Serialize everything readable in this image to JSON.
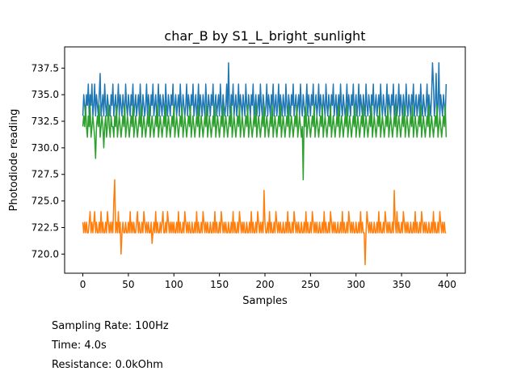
{
  "chart_data": {
    "type": "line",
    "title": "char_B by S1_L_bright_sunlight",
    "xlabel": "Samples",
    "ylabel": "Photodiode reading",
    "xlim": [
      -20,
      420
    ],
    "ylim": [
      718.2,
      739.5
    ],
    "xticks": [
      0,
      50,
      100,
      150,
      200,
      250,
      300,
      350,
      400
    ],
    "xtick_labels": [
      "0",
      "50",
      "100",
      "150",
      "200",
      "250",
      "300",
      "350",
      "400"
    ],
    "yticks": [
      720.0,
      722.5,
      725.0,
      727.5,
      730.0,
      732.5,
      735.0,
      737.5
    ],
    "ytick_labels": [
      "720.0",
      "722.5",
      "725.0",
      "727.5",
      "730.0",
      "732.5",
      "735.0",
      "737.5"
    ],
    "grid": false,
    "legend": "none",
    "n_samples": 400,
    "series": [
      {
        "color": "#1f77b4",
        "base": 734,
        "values": [
          733,
          735,
          734,
          733,
          735,
          734,
          736,
          733,
          735,
          734,
          736,
          733,
          734,
          736,
          733,
          735,
          734,
          733,
          735,
          737,
          733,
          734,
          735,
          733,
          736,
          734,
          733,
          735,
          734,
          734,
          733,
          735,
          734,
          736,
          733,
          734,
          735,
          733,
          734,
          736,
          733,
          735,
          734,
          733,
          735,
          734,
          733,
          736,
          734,
          733,
          735,
          734,
          733,
          735,
          734,
          736,
          733,
          734,
          735,
          733,
          734,
          735,
          733,
          736,
          734,
          733,
          735,
          734,
          733,
          734,
          736,
          733,
          735,
          734,
          733,
          735,
          734,
          736,
          733,
          734,
          735,
          733,
          734,
          736,
          733,
          735,
          734,
          733,
          735,
          734,
          733,
          736,
          734,
          733,
          735,
          734,
          733,
          735,
          734,
          736,
          733,
          734,
          735,
          733,
          734,
          735,
          733,
          736,
          734,
          733,
          735,
          734,
          733,
          734,
          736,
          733,
          735,
          734,
          733,
          735,
          734,
          736,
          733,
          734,
          735,
          733,
          734,
          736,
          733,
          735,
          734,
          733,
          735,
          734,
          733,
          736,
          734,
          733,
          735,
          734,
          733,
          735,
          734,
          736,
          733,
          734,
          735,
          733,
          734,
          735,
          733,
          736,
          734,
          733,
          735,
          734,
          733,
          734,
          736,
          733,
          738,
          734,
          733,
          735,
          734,
          736,
          733,
          734,
          735,
          733,
          734,
          736,
          733,
          735,
          734,
          733,
          735,
          734,
          733,
          736,
          734,
          733,
          735,
          734,
          733,
          735,
          734,
          736,
          733,
          734,
          735,
          733,
          734,
          735,
          733,
          736,
          734,
          733,
          735,
          734,
          733,
          734,
          736,
          733,
          735,
          734,
          733,
          735,
          734,
          736,
          733,
          734,
          735,
          733,
          734,
          736,
          733,
          735,
          734,
          733,
          735,
          734,
          733,
          736,
          734,
          733,
          735,
          734,
          733,
          735,
          734,
          736,
          733,
          734,
          735,
          733,
          734,
          735,
          733,
          736,
          734,
          733,
          735,
          734,
          733,
          734,
          736,
          733,
          735,
          734,
          733,
          735,
          734,
          736,
          733,
          734,
          735,
          733,
          734,
          736,
          733,
          735,
          734,
          733,
          735,
          734,
          733,
          736,
          734,
          733,
          735,
          734,
          733,
          735,
          734,
          736,
          733,
          734,
          735,
          733,
          734,
          735,
          733,
          736,
          734,
          733,
          735,
          734,
          733,
          734,
          736,
          733,
          735,
          734,
          733,
          735,
          734,
          736,
          733,
          734,
          735,
          733,
          734,
          736,
          733,
          735,
          734,
          733,
          735,
          734,
          733,
          736,
          734,
          733,
          735,
          734,
          733,
          735,
          734,
          736,
          733,
          734,
          735,
          733,
          734,
          735,
          733,
          736,
          734,
          733,
          735,
          734,
          733,
          734,
          736,
          733,
          735,
          734,
          733,
          735,
          734,
          736,
          733,
          734,
          735,
          733,
          734,
          736,
          733,
          735,
          734,
          733,
          735,
          734,
          733,
          736,
          734,
          733,
          735,
          734,
          733,
          735,
          734,
          736,
          733,
          734,
          735,
          733,
          734,
          735,
          733,
          736,
          734,
          733,
          735,
          734,
          733,
          734,
          736,
          733,
          735,
          734,
          733,
          735,
          738,
          736,
          733,
          734,
          737,
          733,
          734,
          738,
          733,
          735,
          734,
          733,
          735,
          734,
          733,
          736,
          734,
          733,
          735,
          734,
          733,
          735,
          734,
          736,
          733,
          734,
          735,
          733,
          734
        ]
      },
      {
        "color": "#ff7f0e",
        "base": 722.5,
        "values": [
          723,
          722,
          723,
          722,
          723,
          722,
          722,
          723,
          724,
          722,
          723,
          722,
          723,
          724,
          722,
          723,
          722,
          722,
          723,
          722,
          724,
          722,
          723,
          722,
          722,
          723,
          722,
          724,
          723,
          722,
          723,
          722,
          723,
          722,
          725,
          727,
          722,
          723,
          722,
          724,
          722,
          723,
          720,
          722,
          723,
          722,
          722,
          723,
          722,
          722,
          723,
          722,
          724,
          722,
          723,
          722,
          723,
          722,
          722,
          723,
          724,
          722,
          723,
          722,
          722,
          723,
          722,
          724,
          723,
          722,
          723,
          722,
          723,
          722,
          722,
          723,
          721,
          722,
          723,
          722,
          724,
          722,
          723,
          722,
          722,
          723,
          722,
          723,
          724,
          722,
          722,
          723,
          722,
          724,
          723,
          722,
          723,
          722,
          723,
          722,
          723,
          722,
          722,
          723,
          722,
          724,
          722,
          723,
          722,
          722,
          723,
          722,
          724,
          723,
          722,
          723,
          722,
          723,
          722,
          722,
          723,
          722,
          722,
          723,
          722,
          724,
          722,
          723,
          722,
          722,
          723,
          722,
          724,
          723,
          722,
          723,
          722,
          723,
          722,
          722,
          723,
          722,
          722,
          723,
          722,
          724,
          722,
          723,
          722,
          722,
          723,
          722,
          724,
          723,
          722,
          723,
          722,
          723,
          722,
          722,
          723,
          722,
          722,
          723,
          722,
          724,
          722,
          723,
          722,
          722,
          723,
          722,
          724,
          723,
          722,
          723,
          722,
          723,
          722,
          722,
          723,
          722,
          722,
          723,
          722,
          724,
          722,
          723,
          722,
          722,
          723,
          722,
          724,
          723,
          722,
          723,
          722,
          723,
          722,
          726,
          723,
          722,
          722,
          723,
          722,
          724,
          722,
          723,
          722,
          722,
          723,
          722,
          724,
          723,
          722,
          723,
          722,
          723,
          722,
          722,
          723,
          722,
          722,
          723,
          722,
          724,
          722,
          723,
          722,
          722,
          723,
          722,
          724,
          723,
          722,
          723,
          722,
          723,
          722,
          722,
          723,
          722,
          722,
          723,
          722,
          724,
          722,
          723,
          722,
          722,
          723,
          722,
          724,
          723,
          722,
          723,
          722,
          723,
          722,
          722,
          723,
          722,
          722,
          723,
          722,
          724,
          722,
          723,
          722,
          722,
          723,
          722,
          724,
          723,
          722,
          723,
          722,
          723,
          722,
          722,
          723,
          722,
          722,
          723,
          722,
          724,
          722,
          723,
          722,
          722,
          723,
          722,
          724,
          723,
          722,
          723,
          722,
          723,
          722,
          722,
          723,
          722,
          722,
          723,
          722,
          724,
          722,
          723,
          722,
          722,
          719,
          722,
          724,
          723,
          722,
          723,
          722,
          723,
          722,
          722,
          723,
          722,
          722,
          723,
          722,
          724,
          722,
          723,
          722,
          722,
          723,
          722,
          724,
          723,
          722,
          723,
          722,
          723,
          722,
          722,
          723,
          722,
          726,
          723,
          722,
          724,
          722,
          723,
          722,
          722,
          723,
          722,
          724,
          723,
          722,
          723,
          722,
          723,
          722,
          722,
          723,
          722,
          722,
          723,
          722,
          724,
          722,
          723,
          722,
          722,
          723,
          722,
          724,
          723,
          722,
          723,
          722,
          723,
          722,
          722,
          723,
          722,
          722,
          723,
          722,
          724,
          722,
          723,
          722,
          722,
          723,
          722,
          724,
          723,
          722,
          723,
          722,
          723,
          722,
          722,
          723,
          722,
          722,
          723,
          722,
          723
        ]
      },
      {
        "color": "#2ca02c",
        "base": 732,
        "values": [
          732,
          733,
          732,
          734,
          732,
          731,
          733,
          732,
          734,
          731,
          732,
          733,
          732,
          731,
          729,
          732,
          733,
          732,
          734,
          731,
          732,
          733,
          732,
          730,
          732,
          733,
          731,
          732,
          734,
          732,
          731,
          733,
          732,
          732,
          731,
          733,
          732,
          734,
          731,
          732,
          733,
          732,
          731,
          732,
          733,
          732,
          734,
          731,
          732,
          733,
          732,
          731,
          732,
          733,
          732,
          734,
          731,
          732,
          733,
          732,
          731,
          732,
          733,
          732,
          734,
          731,
          732,
          733,
          732,
          731,
          732,
          733,
          732,
          734,
          731,
          732,
          733,
          732,
          731,
          732,
          733,
          732,
          734,
          731,
          732,
          733,
          732,
          731,
          732,
          733,
          732,
          734,
          731,
          732,
          733,
          732,
          731,
          732,
          733,
          732,
          734,
          731,
          732,
          733,
          732,
          731,
          732,
          733,
          732,
          734,
          731,
          732,
          733,
          732,
          731,
          732,
          733,
          732,
          734,
          731,
          732,
          733,
          732,
          731,
          732,
          733,
          732,
          734,
          731,
          732,
          733,
          732,
          731,
          732,
          733,
          732,
          734,
          731,
          732,
          733,
          732,
          731,
          732,
          733,
          732,
          734,
          731,
          732,
          733,
          732,
          731,
          732,
          733,
          732,
          734,
          731,
          732,
          733,
          732,
          731,
          732,
          733,
          732,
          734,
          731,
          732,
          733,
          732,
          731,
          732,
          733,
          732,
          734,
          731,
          732,
          733,
          732,
          731,
          732,
          733,
          732,
          734,
          731,
          732,
          733,
          732,
          731,
          732,
          733,
          732,
          734,
          731,
          732,
          733,
          732,
          731,
          732,
          733,
          732,
          734,
          731,
          732,
          733,
          732,
          731,
          732,
          733,
          732,
          734,
          731,
          732,
          733,
          732,
          731,
          732,
          733,
          732,
          734,
          731,
          732,
          733,
          732,
          731,
          732,
          733,
          732,
          734,
          731,
          732,
          733,
          732,
          731,
          732,
          733,
          732,
          734,
          731,
          732,
          733,
          732,
          731,
          732,
          727,
          733,
          732,
          734,
          731,
          732,
          733,
          732,
          731,
          732,
          733,
          732,
          734,
          731,
          732,
          733,
          732,
          731,
          732,
          733,
          732,
          734,
          731,
          732,
          733,
          732,
          731,
          732,
          733,
          732,
          734,
          731,
          732,
          733,
          732,
          731,
          732,
          733,
          732,
          734,
          731,
          732,
          733,
          732,
          731,
          732,
          733,
          732,
          734,
          731,
          732,
          733,
          732,
          731,
          732,
          733,
          732,
          734,
          731,
          732,
          733,
          732,
          731,
          732,
          733,
          732,
          734,
          731,
          732,
          733,
          732,
          731,
          732,
          733,
          732,
          734,
          731,
          732,
          733,
          732,
          731,
          732,
          733,
          732,
          734,
          731,
          732,
          733,
          732,
          731,
          732,
          733,
          732,
          734,
          731,
          732,
          733,
          732,
          731,
          732,
          733,
          732,
          734,
          731,
          732,
          733,
          732,
          731,
          732,
          733,
          732,
          734,
          731,
          732,
          733,
          732,
          731,
          732,
          733,
          732,
          734,
          731,
          732,
          733,
          732,
          731,
          732,
          733,
          732,
          734,
          731,
          732,
          733,
          732,
          731,
          732,
          733,
          732,
          734,
          731,
          732,
          733,
          732,
          731,
          732,
          733,
          732,
          734,
          731,
          732,
          733,
          732,
          731,
          732,
          733,
          732,
          734,
          731,
          732,
          733,
          732,
          731,
          732,
          733,
          732,
          734,
          731,
          732,
          733,
          732
        ]
      }
    ]
  },
  "info": {
    "sampling_rate": "Sampling Rate: 100Hz",
    "time": "Time: 4.0s",
    "resistance": "Resistance: 0.0kOhm"
  }
}
